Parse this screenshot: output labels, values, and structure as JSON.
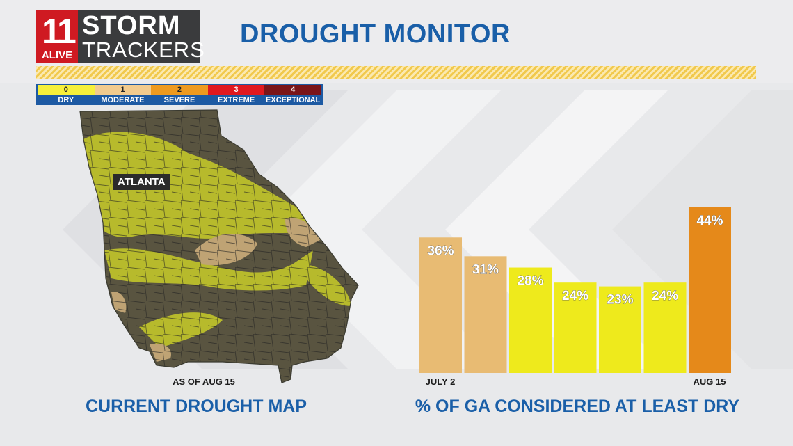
{
  "logo": {
    "number": "11",
    "alive": "ALIVE",
    "storm": "STORM",
    "trackers": "TRACKERS"
  },
  "title": "DROUGHT MONITOR",
  "legend": [
    {
      "level": "0",
      "label": "DRY",
      "color": "#f6f03a"
    },
    {
      "level": "1",
      "label": "MODERATE",
      "color": "#f2cb8e"
    },
    {
      "level": "2",
      "label": "SEVERE",
      "color": "#ee9a1f"
    },
    {
      "level": "3",
      "label": "EXTREME",
      "color": "#e1191f"
    },
    {
      "level": "4",
      "label": "EXCEPTIONAL",
      "color": "#7a1519"
    }
  ],
  "map": {
    "city_label": "ATLANTA",
    "date": "AS OF AUG 15",
    "caption": "CURRENT DROUGHT MAP"
  },
  "chart_data": {
    "type": "bar",
    "title": "% OF GA CONSIDERED AT LEAST DRY",
    "x_start_label": "JULY 2",
    "x_end_label": "AUG 15",
    "values": [
      36,
      31,
      28,
      24,
      23,
      24,
      44
    ],
    "value_labels": [
      "36%",
      "31%",
      "28%",
      "24%",
      "23%",
      "24%",
      "44%"
    ],
    "bar_colors": [
      "#e8bb73",
      "#e8bb73",
      "#eeea1c",
      "#eeea1c",
      "#eeea1c",
      "#eeea1c",
      "#e5891a"
    ],
    "ylim": [
      0,
      44
    ]
  }
}
